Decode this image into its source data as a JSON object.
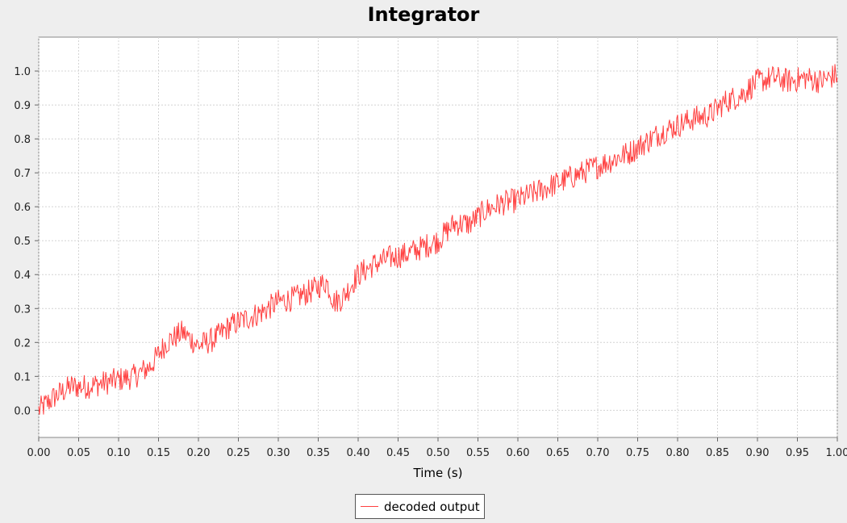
{
  "chart_data": {
    "type": "line",
    "title": "Integrator",
    "xlabel": "Time (s)",
    "ylabel": "",
    "xlim": [
      0.0,
      1.0
    ],
    "ylim": [
      -0.08,
      1.1
    ],
    "xticks": [
      "0.00",
      "0.05",
      "0.10",
      "0.15",
      "0.20",
      "0.25",
      "0.30",
      "0.35",
      "0.40",
      "0.45",
      "0.50",
      "0.55",
      "0.60",
      "0.65",
      "0.70",
      "0.75",
      "0.80",
      "0.85",
      "0.90",
      "0.95",
      "1.00"
    ],
    "yticks": [
      "0.0",
      "0.1",
      "0.2",
      "0.3",
      "0.4",
      "0.5",
      "0.6",
      "0.7",
      "0.8",
      "0.9",
      "1.0"
    ],
    "grid": true,
    "legend_position": "bottom-center",
    "series": [
      {
        "name": "decoded output",
        "color": "#ff4040",
        "x": [
          0.0,
          0.02,
          0.04,
          0.06,
          0.08,
          0.1,
          0.12,
          0.14,
          0.16,
          0.18,
          0.2,
          0.22,
          0.24,
          0.26,
          0.28,
          0.3,
          0.32,
          0.34,
          0.36,
          0.37,
          0.38,
          0.4,
          0.42,
          0.44,
          0.46,
          0.48,
          0.5,
          0.52,
          0.54,
          0.56,
          0.58,
          0.6,
          0.62,
          0.64,
          0.66,
          0.68,
          0.7,
          0.72,
          0.74,
          0.76,
          0.78,
          0.8,
          0.82,
          0.84,
          0.86,
          0.88,
          0.9,
          0.92,
          0.94,
          0.96,
          0.98,
          1.0
        ],
        "y": [
          0.0,
          0.04,
          0.07,
          0.07,
          0.08,
          0.09,
          0.1,
          0.13,
          0.2,
          0.23,
          0.19,
          0.21,
          0.25,
          0.27,
          0.29,
          0.32,
          0.33,
          0.35,
          0.38,
          0.32,
          0.33,
          0.4,
          0.43,
          0.45,
          0.46,
          0.48,
          0.5,
          0.55,
          0.55,
          0.59,
          0.61,
          0.62,
          0.64,
          0.66,
          0.68,
          0.7,
          0.72,
          0.74,
          0.76,
          0.79,
          0.82,
          0.84,
          0.86,
          0.87,
          0.91,
          0.93,
          0.97,
          0.98,
          0.97,
          0.98,
          0.97,
          0.99
        ]
      }
    ]
  }
}
